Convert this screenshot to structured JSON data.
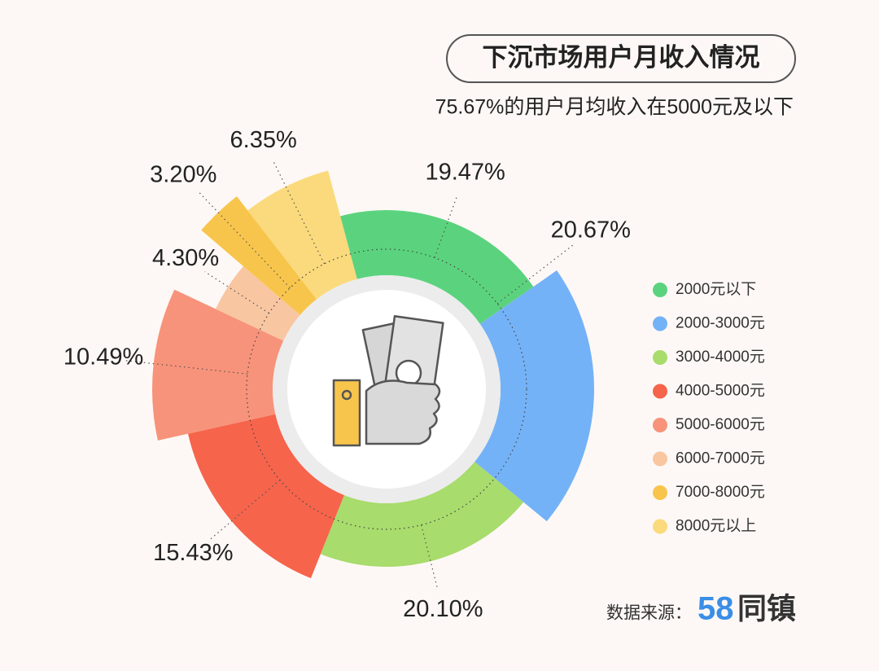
{
  "chart_data": {
    "type": "rose",
    "title": "下沉市场用户月收入情况",
    "subtitle": "75.67%的用户月均收入在5000元及以下",
    "categories": [
      "2000元以下",
      "2000-3000元",
      "3000-4000元",
      "4000-5000元",
      "5000-6000元",
      "6000-7000元",
      "7000-8000元",
      "8000元以上"
    ],
    "values": [
      19.47,
      20.67,
      20.1,
      15.43,
      10.49,
      4.3,
      3.2,
      6.35
    ],
    "value_labels": [
      "19.47%",
      "20.67%",
      "20.10%",
      "15.43%",
      "10.49%",
      "4.30%",
      "3.20%",
      "6.35%"
    ],
    "colors": [
      "#5bd37e",
      "#74b2f7",
      "#a8dc6c",
      "#f6644c",
      "#f7937a",
      "#f9c6a2",
      "#f8c54c",
      "#fada7c"
    ],
    "legend": "right",
    "source": "数据来源：",
    "brand": "58",
    "brand_name": "同镇"
  }
}
